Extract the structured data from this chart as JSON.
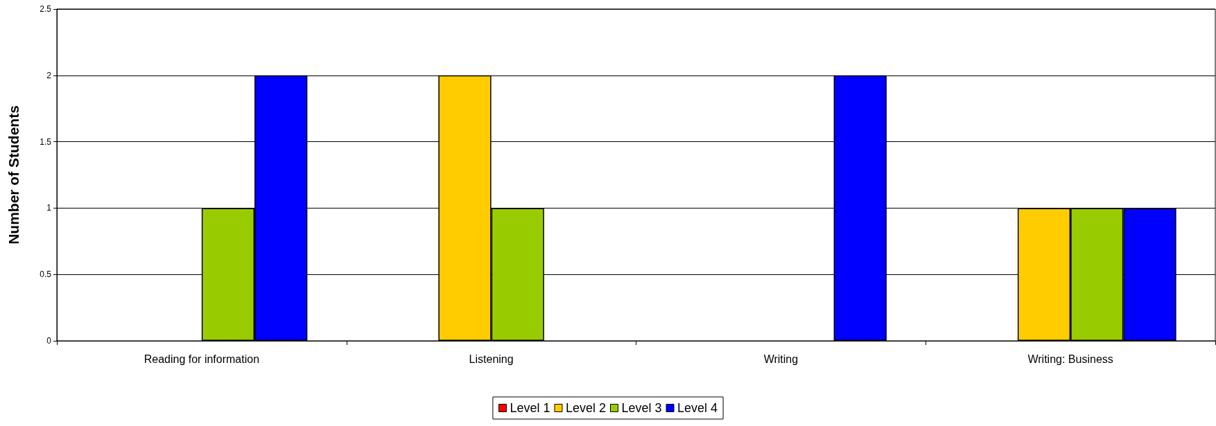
{
  "chart_data": {
    "type": "bar",
    "ylabel": "Number of Students",
    "categories": [
      "Reading for information",
      "Listening",
      "Writing",
      "Writing: Business"
    ],
    "series": [
      {
        "name": "Level 1",
        "color": "#ff0000",
        "values": [
          0,
          0,
          0,
          0
        ]
      },
      {
        "name": "Level 2",
        "color": "#ffcc00",
        "values": [
          0,
          2,
          0,
          1
        ]
      },
      {
        "name": "Level 3",
        "color": "#99cc00",
        "values": [
          1,
          1,
          0,
          1
        ]
      },
      {
        "name": "Level 4",
        "color": "#0000ff",
        "values": [
          2,
          0,
          2,
          1
        ]
      }
    ],
    "ylim": [
      0,
      2.5
    ],
    "yticks": [
      0,
      0.5,
      1,
      1.5,
      2,
      2.5
    ],
    "grid": "y",
    "legend": "bottom"
  }
}
